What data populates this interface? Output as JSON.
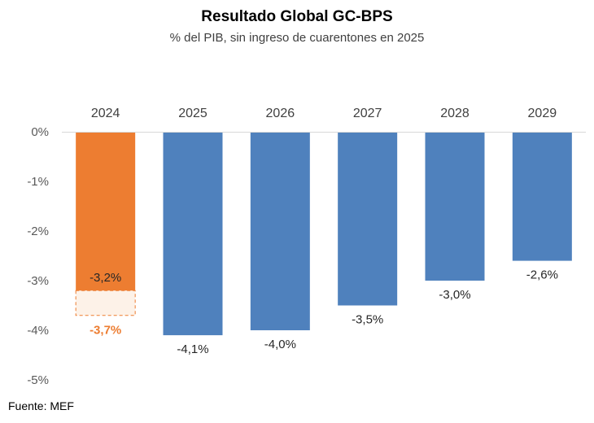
{
  "chart_data": {
    "type": "bar",
    "title": "Resultado Global GC-BPS",
    "subtitle": "% del PIB, sin ingreso de cuarentones en 2025",
    "categories": [
      "2024",
      "2025",
      "2026",
      "2027",
      "2028",
      "2029"
    ],
    "series": [
      {
        "name": "Resultado Global",
        "values": [
          -3.2,
          -4.1,
          -4.0,
          -3.5,
          -3.0,
          -2.6
        ],
        "labels": [
          "-3,2%",
          "-4,1%",
          "-4,0%",
          "-3,5%",
          "-3,0%",
          "-2,6%"
        ]
      }
    ],
    "alternate": {
      "category": "2024",
      "value": -3.7,
      "label": "-3,7%",
      "style": "dashed-outline"
    },
    "ylim": [
      -5,
      0
    ],
    "yticks": [
      0,
      -1,
      -2,
      -3,
      -4,
      -5
    ],
    "ytick_labels": [
      "0%",
      "-1%",
      "-2%",
      "-3%",
      "-4%",
      "-5%"
    ],
    "category_axis_position": "top",
    "colors": {
      "highlight": "#ED7D31",
      "default": "#4F81BD",
      "alternate_fill": "#FDF2E8",
      "axis": "#D9D9D9"
    },
    "source": "Fuente: MEF"
  }
}
